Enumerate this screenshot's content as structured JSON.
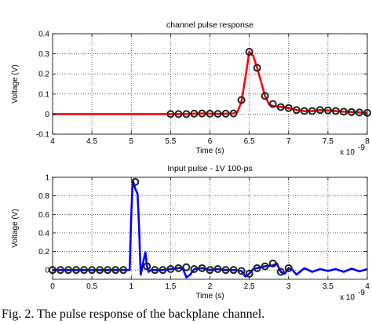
{
  "chart_data": [
    {
      "type": "line",
      "title": "channel pulse response",
      "xlabel": "Time (s)",
      "ylabel": "Voltage (V)",
      "x_multiplier": "x 10",
      "x_multiplier_exp": "-9",
      "xlim": [
        4,
        8
      ],
      "ylim": [
        -0.1,
        0.4
      ],
      "xticks": [
        "4",
        "4.5",
        "5",
        "5.5",
        "6",
        "6.5",
        "7",
        "7.5",
        "8"
      ],
      "yticks": [
        "-0.1",
        "0",
        "0.1",
        "0.2",
        "0.3",
        "0.4"
      ],
      "grid": true,
      "line_color": "#ff0000",
      "marker_color": "#222222",
      "series": [
        {
          "x": [
            4.0,
            5.5,
            5.6,
            5.7,
            5.8,
            5.9,
            6.0,
            6.1,
            6.2,
            6.3,
            6.35,
            6.4,
            6.45,
            6.5,
            6.55,
            6.6,
            6.65,
            6.7,
            6.75,
            6.8,
            6.9,
            7.0,
            7.1,
            7.2,
            7.3,
            7.4,
            7.5,
            7.6,
            7.7,
            7.8,
            7.9,
            8.0
          ],
          "y": [
            0,
            0,
            0,
            0,
            0.002,
            0.003,
            0.002,
            0.001,
            0.002,
            0.003,
            0.01,
            0.06,
            0.18,
            0.31,
            0.29,
            0.23,
            0.16,
            0.09,
            0.05,
            0.04,
            0.035,
            0.03,
            0.02,
            0.015,
            0.015,
            0.02,
            0.018,
            0.015,
            0.012,
            0.01,
            0.008,
            0.006
          ]
        }
      ],
      "markers": {
        "x": [
          5.5,
          5.6,
          5.7,
          5.8,
          5.9,
          6.0,
          6.1,
          6.2,
          6.3,
          6.4,
          6.5,
          6.6,
          6.7,
          6.8,
          6.9,
          7.0,
          7.1,
          7.2,
          7.3,
          7.4,
          7.5,
          7.6,
          7.7,
          7.8,
          7.9,
          8.0
        ],
        "y": [
          0,
          0,
          0,
          0.002,
          0.003,
          0.002,
          0.001,
          0.002,
          0.003,
          0.07,
          0.31,
          0.23,
          0.09,
          0.05,
          0.035,
          0.03,
          0.02,
          0.015,
          0.015,
          0.02,
          0.018,
          0.015,
          0.012,
          0.01,
          0.008,
          0.006
        ]
      }
    },
    {
      "type": "line",
      "title": "Input pulse - 1V 100-ps",
      "xlabel": "Time (s)",
      "ylabel": "Voltage (V)",
      "x_multiplier": "x 10",
      "x_multiplier_exp": "-9",
      "xlim": [
        0,
        4
      ],
      "ylim": [
        -0.1,
        1
      ],
      "xticks": [
        "0",
        "0.5",
        "1",
        "1.5",
        "2",
        "2.5",
        "3",
        "3.5",
        "4"
      ],
      "yticks": [
        "0",
        "0.2",
        "0.4",
        "0.6",
        "0.8",
        "1"
      ],
      "grid": true,
      "line_color": "#0000ff",
      "marker_color": "#222222",
      "series": [
        {
          "x": [
            0,
            0.5,
            0.98,
            1.0,
            1.02,
            1.05,
            1.08,
            1.1,
            1.12,
            1.14,
            1.16,
            1.18,
            1.2,
            1.22,
            1.25,
            1.3,
            1.4,
            1.5,
            1.6,
            1.65,
            1.7,
            1.75,
            1.8,
            1.9,
            2.0,
            2.1,
            2.2,
            2.3,
            2.4,
            2.45,
            2.5,
            2.55,
            2.6,
            2.7,
            2.8,
            2.85,
            2.9,
            2.95,
            3.0,
            3.05,
            3.1,
            3.2,
            3.3,
            3.4,
            3.5,
            3.6,
            3.7,
            3.8,
            3.9,
            4.0
          ],
          "y": [
            0,
            0,
            0,
            0.6,
            0.97,
            0.88,
            0.82,
            0.45,
            -0.05,
            0.03,
            0.12,
            0.19,
            0.04,
            -0.02,
            0.0,
            0.0,
            0.0,
            0.01,
            0.02,
            0.03,
            -0.08,
            -0.05,
            0.01,
            0.02,
            0.0,
            0.01,
            0.0,
            0.0,
            -0.01,
            -0.07,
            -0.04,
            0.01,
            0.02,
            0.04,
            0.05,
            0.07,
            -0.02,
            -0.04,
            0.02,
            0.0,
            -0.05,
            0.02,
            -0.02,
            0.01,
            -0.01,
            0.01,
            -0.02,
            0.015,
            -0.015,
            0.01
          ]
        }
      ],
      "markers": {
        "x": [
          0,
          0.1,
          0.2,
          0.3,
          0.4,
          0.5,
          0.6,
          0.7,
          0.8,
          0.9,
          1.05,
          1.2,
          1.3,
          1.4,
          1.5,
          1.6,
          1.7,
          1.8,
          1.9,
          2.0,
          2.1,
          2.2,
          2.3,
          2.4,
          2.5,
          2.6,
          2.7,
          2.8,
          2.9,
          3.0
        ],
        "y": [
          0,
          0,
          0,
          0,
          0,
          0,
          0,
          0,
          0,
          0,
          0.95,
          0.04,
          0.0,
          0.0,
          0.01,
          0.02,
          0.03,
          0.01,
          0.02,
          0.0,
          0.01,
          0.0,
          0.0,
          -0.01,
          -0.04,
          0.02,
          0.04,
          0.07,
          -0.02,
          0.02
        ]
      }
    }
  ],
  "caption": "Fig. 2. The pulse response of the backplane channel."
}
